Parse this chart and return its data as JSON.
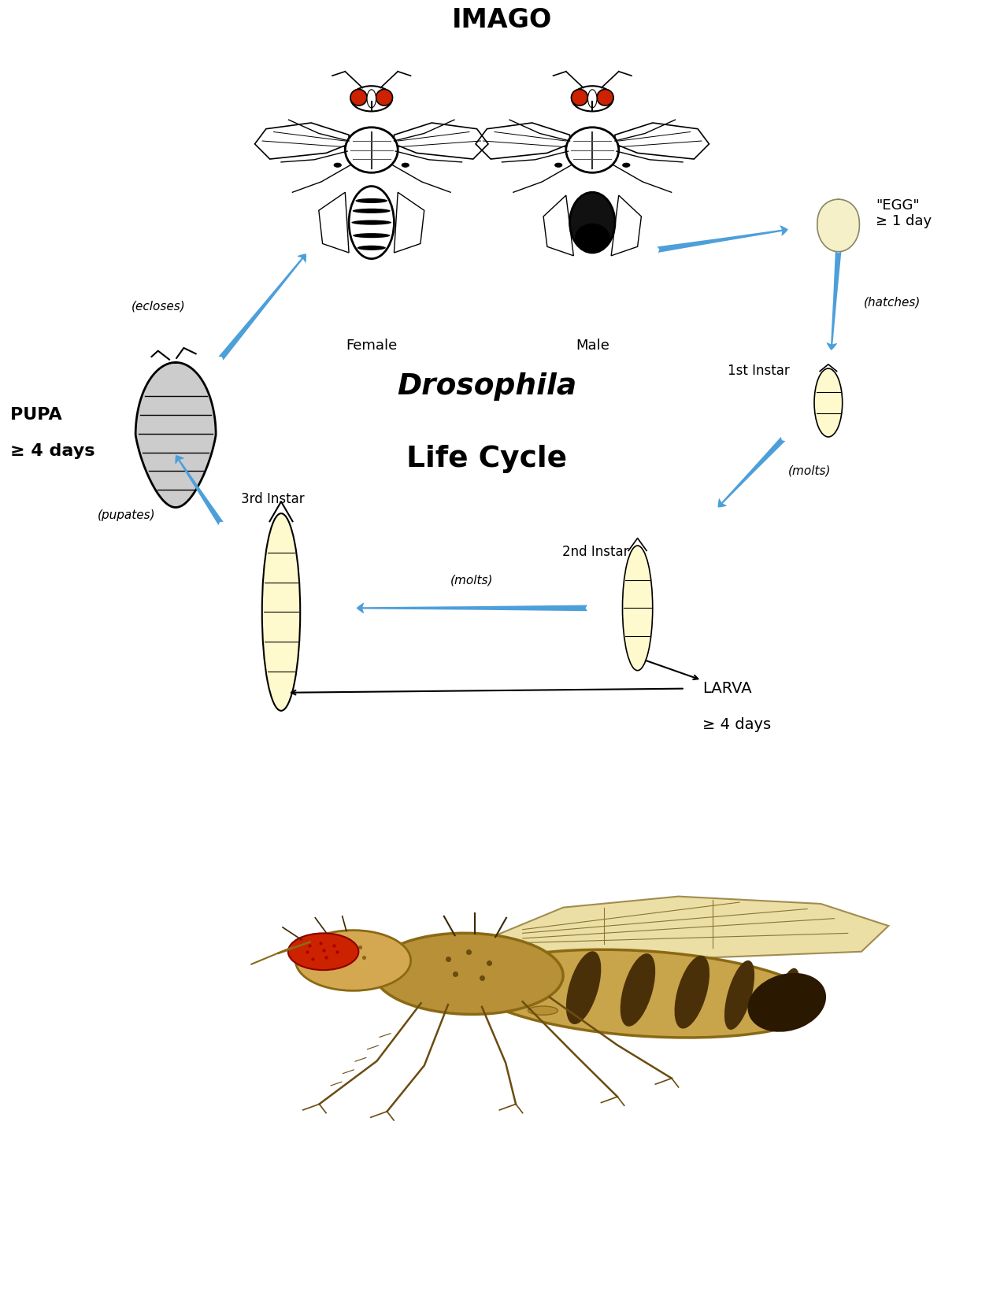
{
  "background_color": "#ffffff",
  "blue": "#4d9fda",
  "black": "#000000",
  "gray_pupa": "#cccccc",
  "cream_larva": "#fffacd",
  "cream_egg": "#f5f0c8",
  "red_eye": "#cc2200",
  "label_imago": "IMAGO",
  "label_female": "Female",
  "label_male": "Male",
  "label_egg": "\"EGG\"\n≥ 1 day",
  "label_pupa_main": "PUPA",
  "label_pupa_days": "≥ 4 days",
  "label_larva_main": "LARVA",
  "label_larva_days": "≥ 4 days",
  "label_1st": "1st Instar",
  "label_2nd": "2nd Instar",
  "label_3rd": "3rd Instar",
  "label_ecloses": "(ecloses)",
  "label_hatches": "(hatches)",
  "label_molts1": "(molts)",
  "label_molts2": "(molts)",
  "label_pupates": "(pupates)",
  "label_drosophila": "Drosophila",
  "label_lifecycle": "Life Cycle",
  "figsize": [
    12.75,
    16.5
  ],
  "dpi": 100
}
